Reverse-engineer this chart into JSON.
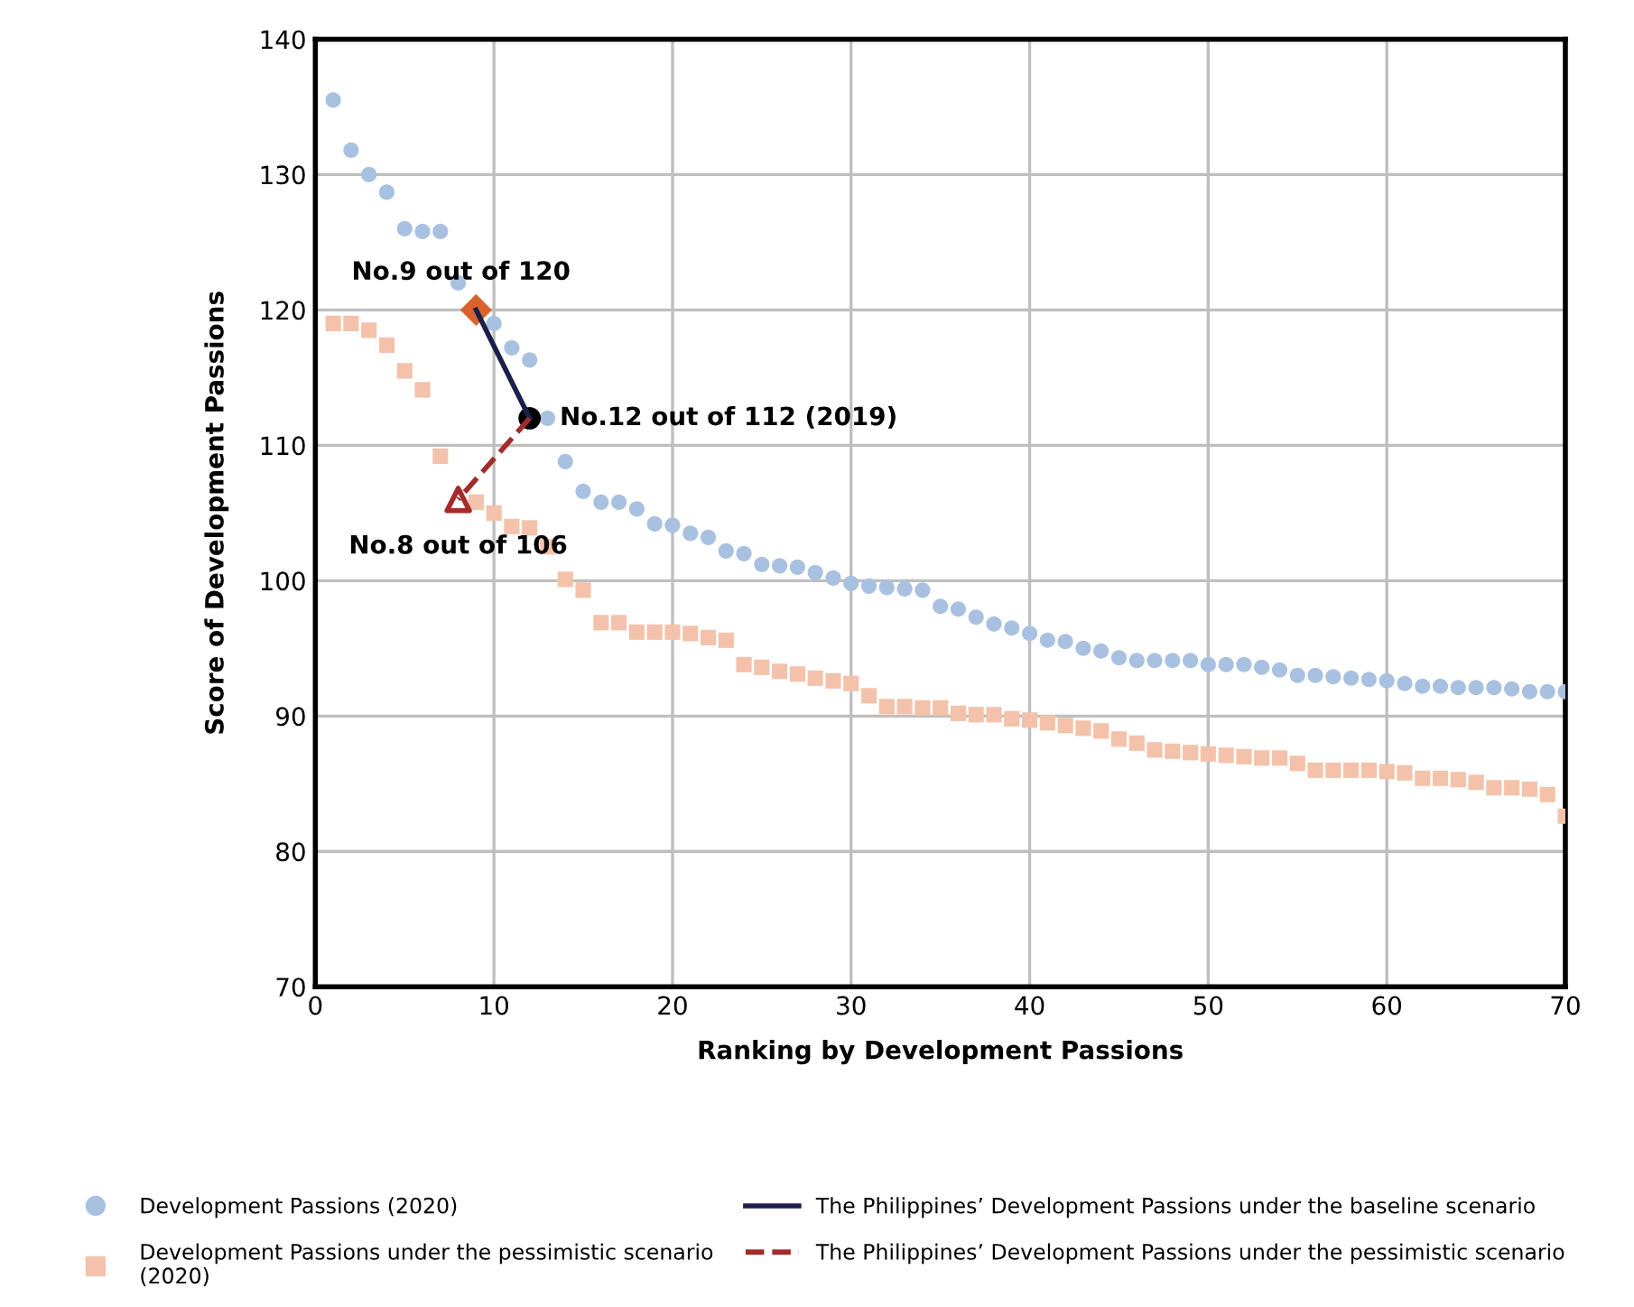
{
  "chart_data": {
    "type": "scatter",
    "xlabel": "Ranking by Development Passions",
    "ylabel": "Score of Development Passions",
    "xlim": [
      0,
      70
    ],
    "xticks": [
      0,
      10,
      20,
      30,
      40,
      50,
      60,
      70
    ],
    "ylim": [
      70,
      140
    ],
    "yticks": [
      70,
      80,
      90,
      100,
      110,
      120,
      130,
      140
    ],
    "grid": true,
    "legend": "bottom",
    "x": [
      1,
      2,
      3,
      4,
      5,
      6,
      7,
      8,
      9,
      10,
      11,
      12,
      13,
      14,
      15,
      16,
      17,
      18,
      19,
      20,
      21,
      22,
      23,
      24,
      25,
      26,
      27,
      28,
      29,
      30,
      31,
      32,
      33,
      34,
      35,
      36,
      37,
      38,
      39,
      40,
      41,
      42,
      43,
      44,
      45,
      46,
      47,
      48,
      49,
      50,
      51,
      52,
      53,
      54,
      55,
      56,
      57,
      58,
      59,
      60,
      61,
      62,
      63,
      64,
      65,
      66,
      67,
      68,
      69,
      70
    ],
    "series": [
      {
        "name": "Development Passions (2020)",
        "color": "#a9c1e0",
        "marker": "circle",
        "values": [
          135.5,
          131.8,
          130,
          128.7,
          126,
          125.8,
          125.8,
          122,
          null,
          119,
          117.2,
          116.3,
          112,
          108.8,
          106.6,
          105.8,
          105.8,
          105.3,
          104.2,
          104.1,
          103.5,
          103.2,
          102.2,
          102,
          101.2,
          101.1,
          101,
          100.6,
          100.2,
          99.8,
          99.6,
          99.5,
          99.4,
          99.3,
          98.1,
          97.9,
          97.3,
          96.8,
          96.5,
          96.1,
          95.6,
          95.5,
          95,
          94.8,
          94.3,
          94.1,
          94.1,
          94.1,
          94.1,
          93.8,
          93.8,
          93.8,
          93.6,
          93.4,
          93,
          93,
          92.9,
          92.8,
          92.7,
          92.6,
          92.4,
          92.2,
          92.2,
          92.1,
          92.1,
          92.1,
          92,
          91.8,
          91.8,
          91.8
        ]
      },
      {
        "name": "Development Passions under the pessimistic scenario (2020)",
        "color": "#f4c2aa",
        "marker": "square",
        "values": [
          119,
          119,
          118.5,
          117.4,
          115.5,
          114.1,
          109.2,
          null,
          105.8,
          105,
          104,
          103.9,
          102.5,
          100.1,
          99.3,
          96.9,
          96.9,
          96.2,
          96.2,
          96.2,
          96.1,
          95.8,
          95.6,
          93.8,
          93.6,
          93.3,
          93.1,
          92.8,
          92.6,
          92.4,
          91.5,
          90.7,
          90.7,
          90.6,
          90.6,
          90.2,
          90.1,
          90.1,
          89.8,
          89.7,
          89.5,
          89.3,
          89.1,
          88.9,
          88.3,
          88,
          87.5,
          87.4,
          87.3,
          87.2,
          87.1,
          87,
          86.9,
          86.9,
          86.5,
          86,
          86,
          86,
          86,
          85.9,
          85.8,
          85.4,
          85.4,
          85.3,
          85.1,
          84.7,
          84.7,
          84.6,
          84.2,
          82.6
        ]
      },
      {
        "name": "The Philippines’ Development Passions under the baseline scenario",
        "type": "line",
        "color": "#1c1f4a",
        "line_style": "solid",
        "x": [
          12,
          9
        ],
        "values": [
          112,
          120
        ]
      },
      {
        "name": "The Philippines’ Development Passions under the pessimistic scenario",
        "type": "line",
        "color": "#a52a2a",
        "line_style": "dashed",
        "x": [
          12,
          8
        ],
        "values": [
          112,
          106
        ]
      },
      {
        "color": "#000000",
        "marker": "circle",
        "x": [
          12
        ],
        "values": [
          112
        ]
      },
      {
        "color": "#d9622b",
        "marker": "diamond",
        "x": [
          9
        ],
        "values": [
          120
        ]
      },
      {
        "color": "#a52a2a",
        "marker": "triangle",
        "x": [
          8
        ],
        "values": [
          106
        ]
      }
    ],
    "annotations": [
      {
        "text": "No.9 out of 120",
        "x": 9,
        "y": 120
      },
      {
        "text": "No.12 out of 112 (2019)",
        "x": 12,
        "y": 112
      },
      {
        "text": "No.8 out of 106",
        "x": 8,
        "y": 106
      }
    ]
  }
}
